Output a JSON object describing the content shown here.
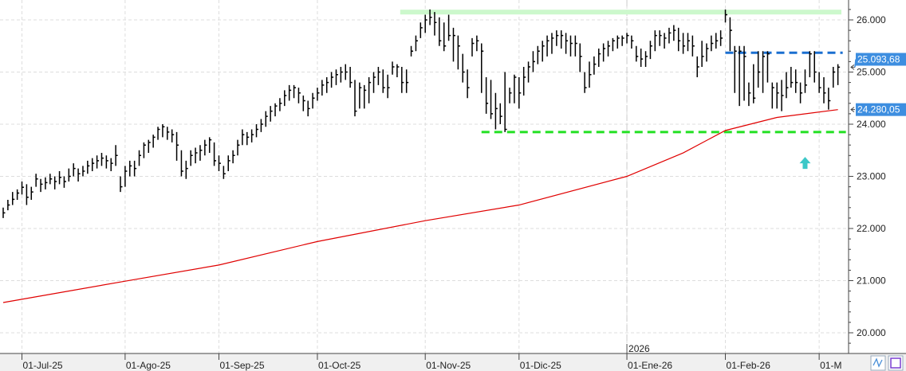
{
  "chart_data": {
    "type": "ohlc",
    "title": "",
    "xlabel": "",
    "ylabel": "",
    "ylim": [
      19700,
      26400
    ],
    "grid": true,
    "y_ticks": [
      {
        "value": 26000,
        "label": "26.000"
      },
      {
        "value": 25000,
        "label": "25.000"
      },
      {
        "value": 24000,
        "label": "24.000"
      },
      {
        "value": 23000,
        "label": "23.000"
      },
      {
        "value": 22000,
        "label": "22.000"
      },
      {
        "value": 21000,
        "label": "21.000"
      },
      {
        "value": 20000,
        "label": "20.000"
      }
    ],
    "x_ticks": [
      {
        "bar": 4,
        "label": "01-Jul-25"
      },
      {
        "bar": 26,
        "label": "01-Ago-25"
      },
      {
        "bar": 46,
        "label": "01-Sep-25"
      },
      {
        "bar": 67,
        "label": "01-Oct-25"
      },
      {
        "bar": 90,
        "label": "01-Nov-25"
      },
      {
        "bar": 110,
        "label": "01-Dic-25"
      },
      {
        "bar": 133,
        "label": "01-Ene-26"
      },
      {
        "bar": 154,
        "label": "01-Feb-26"
      },
      {
        "bar": 174,
        "label": "01-M"
      }
    ],
    "year_marker": {
      "bar": 133,
      "label": "2026"
    },
    "bar_fields": [
      "high",
      "low",
      "close"
    ],
    "bars": [
      [
        22400,
        22200,
        22300
      ],
      [
        22550,
        22350,
        22450
      ],
      [
        22700,
        22450,
        22560
      ],
      [
        22750,
        22550,
        22680
      ],
      [
        22900,
        22650,
        22790
      ],
      [
        22850,
        22450,
        22600
      ],
      [
        22800,
        22550,
        22700
      ],
      [
        23050,
        22800,
        22950
      ],
      [
        22950,
        22700,
        22850
      ],
      [
        22980,
        22750,
        22880
      ],
      [
        23050,
        22850,
        22950
      ],
      [
        23000,
        22750,
        22900
      ],
      [
        23100,
        22850,
        22980
      ],
      [
        23000,
        22780,
        22900
      ],
      [
        23150,
        22900,
        23000
      ],
      [
        23250,
        23000,
        23150
      ],
      [
        23150,
        22900,
        23050
      ],
      [
        23200,
        23000,
        23100
      ],
      [
        23300,
        23050,
        23200
      ],
      [
        23350,
        23100,
        23250
      ],
      [
        23400,
        23150,
        23300
      ],
      [
        23450,
        23200,
        23350
      ],
      [
        23400,
        23150,
        23300
      ],
      [
        23350,
        23100,
        23250
      ],
      [
        23600,
        23200,
        23400
      ],
      [
        23000,
        22700,
        22800
      ],
      [
        23200,
        22800,
        23100
      ],
      [
        23300,
        23000,
        23200
      ],
      [
        23300,
        23000,
        23150
      ],
      [
        23500,
        23200,
        23400
      ],
      [
        23650,
        23350,
        23600
      ],
      [
        23700,
        23450,
        23650
      ],
      [
        23800,
        23550,
        23750
      ],
      [
        23950,
        23700,
        23900
      ],
      [
        24000,
        23750,
        23950
      ],
      [
        23950,
        23700,
        23850
      ],
      [
        23900,
        23650,
        23800
      ],
      [
        23850,
        23300,
        23600
      ],
      [
        23500,
        23000,
        23100
      ],
      [
        23300,
        22950,
        23150
      ],
      [
        23500,
        23200,
        23400
      ],
      [
        23550,
        23250,
        23450
      ],
      [
        23600,
        23300,
        23500
      ],
      [
        23700,
        23400,
        23600
      ],
      [
        23750,
        23450,
        23700
      ],
      [
        23650,
        23200,
        23300
      ],
      [
        23400,
        23100,
        23250
      ],
      [
        23200,
        22950,
        23050
      ],
      [
        23400,
        23100,
        23300
      ],
      [
        23500,
        23250,
        23400
      ],
      [
        23700,
        23400,
        23600
      ],
      [
        23900,
        23600,
        23800
      ],
      [
        23850,
        23600,
        23750
      ],
      [
        23900,
        23650,
        23800
      ],
      [
        24000,
        23750,
        23900
      ],
      [
        24100,
        23850,
        24000
      ],
      [
        24250,
        23950,
        24150
      ],
      [
        24350,
        24050,
        24250
      ],
      [
        24400,
        24150,
        24350
      ],
      [
        24500,
        24250,
        24400
      ],
      [
        24650,
        24350,
        24550
      ],
      [
        24750,
        24450,
        24650
      ],
      [
        24750,
        24500,
        24700
      ],
      [
        24700,
        24400,
        24600
      ],
      [
        24550,
        24250,
        24450
      ],
      [
        24450,
        24150,
        24300
      ],
      [
        24600,
        24300,
        24500
      ],
      [
        24700,
        24450,
        24600
      ],
      [
        24850,
        24550,
        24750
      ],
      [
        24900,
        24600,
        24800
      ],
      [
        25000,
        24700,
        24900
      ],
      [
        25050,
        24750,
        24950
      ],
      [
        25100,
        24800,
        25000
      ],
      [
        25150,
        24850,
        25000
      ],
      [
        25100,
        24700,
        24800
      ],
      [
        24850,
        24150,
        24250
      ],
      [
        24800,
        24300,
        24700
      ],
      [
        24750,
        24300,
        24650
      ],
      [
        24900,
        24400,
        24800
      ],
      [
        25000,
        24600,
        24900
      ],
      [
        25100,
        24750,
        25000
      ],
      [
        25050,
        24600,
        24700
      ],
      [
        24950,
        24500,
        24700
      ],
      [
        25200,
        24950,
        25100
      ],
      [
        25150,
        24900,
        25100
      ],
      [
        25100,
        24600,
        24800
      ],
      [
        25050,
        24600,
        24800
      ],
      [
        25500,
        25300,
        25400
      ],
      [
        25700,
        25400,
        25600
      ],
      [
        25950,
        25650,
        25850
      ],
      [
        26100,
        25750,
        26000
      ],
      [
        26200,
        25900,
        26050
      ],
      [
        26150,
        25700,
        25950
      ],
      [
        26050,
        25500,
        25600
      ],
      [
        25950,
        25400,
        25500
      ],
      [
        26100,
        25600,
        25700
      ],
      [
        25850,
        25200,
        25700
      ],
      [
        25700,
        25050,
        25500
      ],
      [
        25350,
        24800,
        25000
      ],
      [
        25050,
        24500,
        24700
      ],
      [
        25650,
        25300,
        25550
      ],
      [
        25700,
        25400,
        25600
      ],
      [
        25550,
        24600,
        25400
      ],
      [
        24900,
        24200,
        24400
      ],
      [
        24850,
        24100,
        24200
      ],
      [
        24600,
        23900,
        24300
      ],
      [
        24400,
        24000,
        24150
      ],
      [
        25000,
        23850,
        23900
      ],
      [
        24700,
        24400,
        24600
      ],
      [
        24950,
        24400,
        24900
      ],
      [
        24900,
        24300,
        24600
      ],
      [
        25100,
        24550,
        24900
      ],
      [
        25200,
        24800,
        25100
      ],
      [
        25400,
        25000,
        25200
      ],
      [
        25500,
        25150,
        25400
      ],
      [
        25600,
        25200,
        25500
      ],
      [
        25700,
        25300,
        25600
      ],
      [
        25750,
        25350,
        25650
      ],
      [
        25800,
        25500,
        25700
      ],
      [
        25800,
        25450,
        25700
      ],
      [
        25750,
        25350,
        25600
      ],
      [
        25700,
        25300,
        25550
      ],
      [
        25700,
        25300,
        25550
      ],
      [
        25550,
        25000,
        25300
      ],
      [
        25000,
        24600,
        24700
      ],
      [
        25200,
        24700,
        24950
      ],
      [
        25300,
        24950,
        25150
      ],
      [
        25450,
        25100,
        25350
      ],
      [
        25550,
        25200,
        25450
      ],
      [
        25600,
        25300,
        25500
      ],
      [
        25650,
        25400,
        25600
      ],
      [
        25700,
        25450,
        25650
      ],
      [
        25700,
        25500,
        25650
      ],
      [
        25750,
        25550,
        25700
      ],
      [
        25700,
        25450,
        25600
      ],
      [
        25500,
        25200,
        25300
      ],
      [
        25450,
        25100,
        25250
      ],
      [
        25400,
        25100,
        25300
      ],
      [
        25600,
        25250,
        25500
      ],
      [
        25800,
        25400,
        25700
      ],
      [
        25800,
        25500,
        25700
      ],
      [
        25750,
        25450,
        25650
      ],
      [
        25850,
        25550,
        25750
      ],
      [
        25900,
        25600,
        25800
      ],
      [
        25850,
        25400,
        25600
      ],
      [
        25750,
        25350,
        25500
      ],
      [
        25750,
        25400,
        25600
      ],
      [
        25700,
        25300,
        25500
      ],
      [
        25300,
        24900,
        25100
      ],
      [
        25600,
        25100,
        25300
      ],
      [
        25550,
        25200,
        25450
      ],
      [
        25700,
        25400,
        25550
      ],
      [
        25750,
        25450,
        25600
      ],
      [
        25800,
        25500,
        25650
      ],
      [
        26200,
        25950,
        26100
      ],
      [
        26050,
        25400,
        25800
      ],
      [
        25500,
        24600,
        25400
      ],
      [
        25500,
        24350,
        25400
      ],
      [
        25500,
        24450,
        25300
      ],
      [
        24800,
        24350,
        24600
      ],
      [
        25150,
        24400,
        24500
      ],
      [
        25400,
        24700,
        25000
      ],
      [
        25400,
        24600,
        25300
      ],
      [
        25400,
        24800,
        25350
      ],
      [
        24800,
        24300,
        24700
      ],
      [
        24800,
        24300,
        24600
      ],
      [
        24850,
        24250,
        24550
      ],
      [
        25000,
        24500,
        24700
      ],
      [
        25100,
        24700,
        24800
      ],
      [
        25050,
        24600,
        24800
      ],
      [
        24800,
        24400,
        24600
      ],
      [
        25050,
        24600,
        24750
      ],
      [
        25400,
        24900,
        25350
      ],
      [
        25400,
        24800,
        25000
      ],
      [
        25000,
        24600,
        24700
      ],
      [
        24900,
        24400,
        24600
      ],
      [
        24700,
        24280,
        24450
      ],
      [
        25100,
        24700,
        25000
      ],
      [
        25150,
        24750,
        25094
      ]
    ],
    "moving_average": {
      "color": "#e00000",
      "points": [
        {
          "bar": 0,
          "value": 20580
        },
        {
          "bar": 26,
          "value": 20990
        },
        {
          "bar": 46,
          "value": 21300
        },
        {
          "bar": 67,
          "value": 21750
        },
        {
          "bar": 90,
          "value": 22150
        },
        {
          "bar": 110,
          "value": 22450
        },
        {
          "bar": 133,
          "value": 23000
        },
        {
          "bar": 145,
          "value": 23450
        },
        {
          "bar": 154,
          "value": 23880
        },
        {
          "bar": 165,
          "value": 24130
        },
        {
          "bar": 178,
          "value": 24280
        }
      ]
    },
    "levels": [
      {
        "value": 26150,
        "from_bar": 85,
        "style": "band",
        "color": "#ccf8cc"
      },
      {
        "value": 25370,
        "from_bar": 154,
        "style": "dashed",
        "color": "#1a6fd0"
      },
      {
        "value": 23850,
        "from_bar": 102,
        "style": "dashed",
        "color": "#22e022"
      }
    ],
    "price_labels": [
      {
        "value": 25093.68,
        "label": "25.093,68",
        "color": "#3d8ee0"
      },
      {
        "value": 24280.05,
        "label": "24.280,05",
        "color": "#3d8ee0"
      }
    ],
    "arrow": {
      "bar": 171,
      "value": 23250,
      "color": "#3cc8c8",
      "direction": "up"
    }
  },
  "toolbar": {
    "icons": [
      "chart-type-icon",
      "save-icon"
    ]
  }
}
